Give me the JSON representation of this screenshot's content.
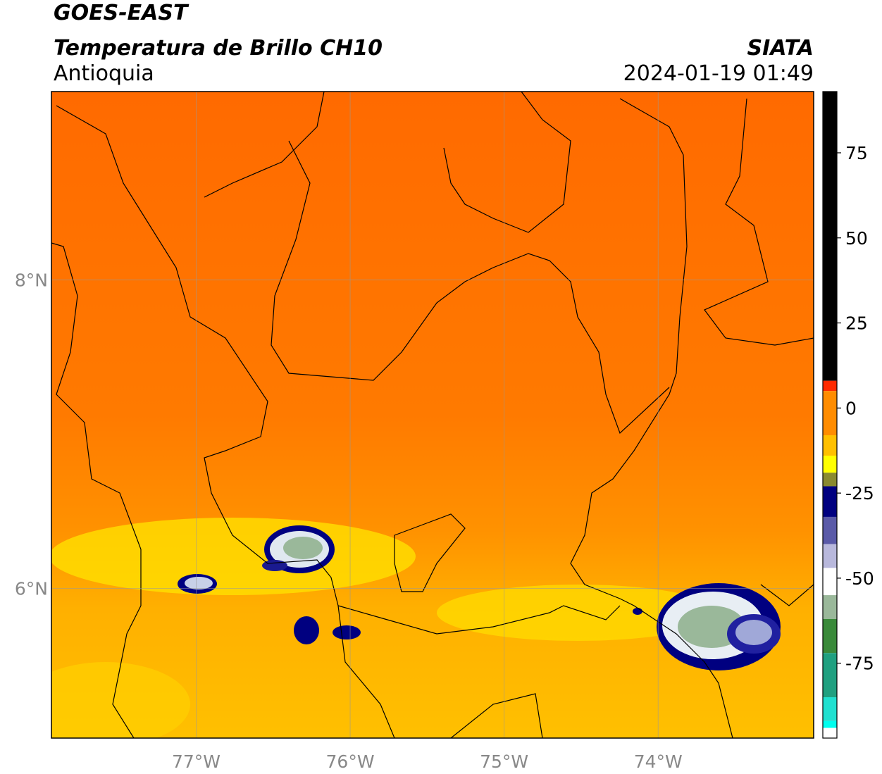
{
  "header": {
    "title": "GOES-EAST",
    "subtitle": "Temperatura de Brillo CH10",
    "region": "Antioquia",
    "source": "SIATA",
    "datetime": "2024-01-19 01:49"
  },
  "map": {
    "lonlim": [
      -77.94,
      -72.99
    ],
    "latlim": [
      5.03,
      9.22
    ],
    "lonticks": [
      {
        "value": -77,
        "label": "77°W"
      },
      {
        "value": -76,
        "label": "76°W"
      },
      {
        "value": -75,
        "label": "75°W"
      },
      {
        "value": -74,
        "label": "74°W"
      }
    ],
    "latticks": [
      {
        "value": 8,
        "label": "8°N"
      },
      {
        "value": 6,
        "label": "6°N"
      }
    ]
  },
  "colorbar": {
    "lim": [
      -97,
      93
    ],
    "ticks": [
      75,
      50,
      25,
      0,
      -25,
      -50,
      -75
    ],
    "stops": [
      {
        "from": 93,
        "color": "#000000"
      },
      {
        "from": 8,
        "color": "#ff2a00"
      },
      {
        "from": 5,
        "color": "#ff8c00"
      },
      {
        "from": -8,
        "color": "#ffc000"
      },
      {
        "from": -14,
        "color": "#ffff00"
      },
      {
        "from": -19,
        "color": "#8a8a30"
      },
      {
        "from": -23,
        "color": "#000080"
      },
      {
        "from": -32,
        "color": "#5a5aa8"
      },
      {
        "from": -40,
        "color": "#b8b8dc"
      },
      {
        "from": -47,
        "color": "#ffffff"
      },
      {
        "from": -55,
        "color": "#9ab89a"
      },
      {
        "from": -62,
        "color": "#3a8a3a"
      },
      {
        "from": -72,
        "color": "#20a080"
      },
      {
        "from": -85,
        "color": "#20e0d0"
      },
      {
        "from": -92,
        "color": "#00ffee"
      },
      {
        "from": -94,
        "color": "#ffffff"
      }
    ]
  }
}
